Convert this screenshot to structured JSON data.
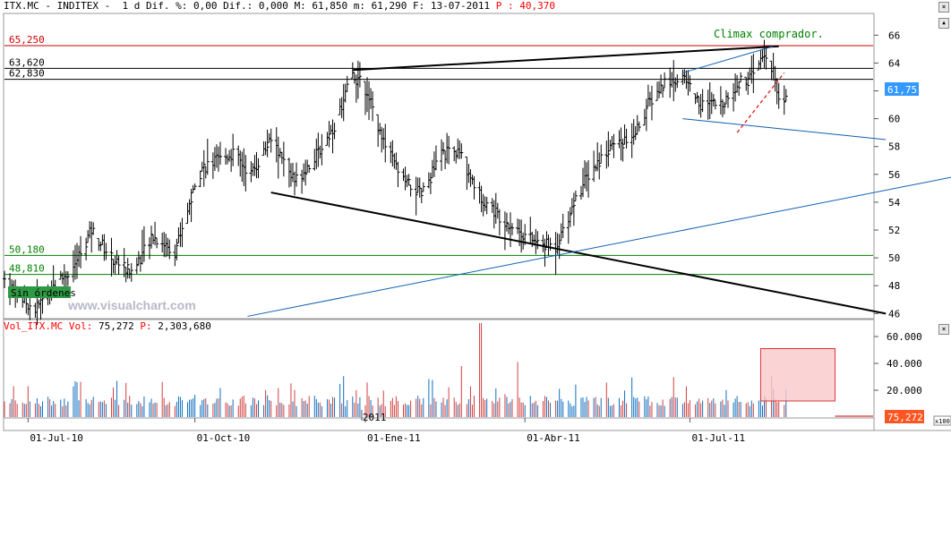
{
  "header": {
    "symbol": "ITX.MC - INDITEX -",
    "timeframe": "1 d",
    "dif_pct": "Dif. %: 0,00",
    "dif": "Dif.: 0,000",
    "max": "M: 61,850",
    "min": "m: 61,290",
    "date": "F: 13-07-2011",
    "p_label": "P :",
    "p_value": "40,370"
  },
  "watermark": "www.visualchart.com",
  "sin_ordenes": "Sin órdenes",
  "annotation": "Climax comprador.",
  "last_price": "61,75",
  "last_volume": "75,272",
  "vol_header": {
    "label": "Vol_ITX.MC Vol:",
    "vol": "75,272",
    "p_label": "P:",
    "p_value": "2,303,680"
  },
  "vol_multiplier": "x100",
  "colors": {
    "resistance": "#cc0000",
    "support": "#008000",
    "trend": "#1060b0",
    "bars": "#000000",
    "vol_up": "#1070c0",
    "vol_down": "#d04040",
    "price_tag": "#3399ff",
    "vol_tag": "#ff5522"
  },
  "chart_data": {
    "type": "bar",
    "price_axis": {
      "ticks": [
        46,
        48,
        50,
        52,
        54,
        56,
        58,
        60,
        62,
        64,
        66
      ],
      "range": [
        45.7,
        67.5
      ]
    },
    "volume_axis": {
      "ticks": [
        "20.000",
        "40.000",
        "60.000"
      ],
      "range": [
        0,
        72000
      ]
    },
    "x_labels": [
      {
        "label": "01-Jul-10",
        "date": "2010-07-01"
      },
      {
        "label": "01-Oct-10",
        "date": "2010-10-01"
      },
      {
        "label": "2011",
        "date": "2011-01-01"
      },
      {
        "label": "01-Ene-11",
        "date": "2011-01-03"
      },
      {
        "label": "01-Abr-11",
        "date": "2011-04-01"
      },
      {
        "label": "01-Jul-11",
        "date": "2011-07-01"
      }
    ],
    "levels": [
      {
        "label": "65,250",
        "value": 65.25,
        "kind": "resistance"
      },
      {
        "label": "63,620",
        "value": 63.62,
        "kind": "line"
      },
      {
        "label": "62,830",
        "value": 62.83,
        "kind": "line"
      },
      {
        "label": "50,180",
        "value": 50.18,
        "kind": "support"
      },
      {
        "label": "48,810",
        "value": 48.81,
        "kind": "support"
      }
    ],
    "price_path": [
      [
        "2010-06-18",
        48.5
      ],
      [
        "2010-06-28",
        47.0
      ],
      [
        "2010-07-05",
        46.3
      ],
      [
        "2010-07-15",
        48.0
      ],
      [
        "2010-07-26",
        49.3
      ],
      [
        "2010-08-05",
        52.0
      ],
      [
        "2010-08-16",
        50.0
      ],
      [
        "2010-08-27",
        49.0
      ],
      [
        "2010-09-08",
        51.5
      ],
      [
        "2010-09-20",
        50.5
      ],
      [
        "2010-09-27",
        53.5
      ],
      [
        "2010-10-05",
        56.5
      ],
      [
        "2010-10-14",
        57.0
      ],
      [
        "2010-10-22",
        57.5
      ],
      [
        "2010-11-01",
        56.0
      ],
      [
        "2010-11-12",
        58.5
      ],
      [
        "2010-11-25",
        55.5
      ],
      [
        "2010-12-08",
        57.5
      ],
      [
        "2010-12-17",
        59.5
      ],
      [
        "2010-12-27",
        63.2
      ],
      [
        "2011-01-04",
        62.0
      ],
      [
        "2011-01-14",
        58.0
      ],
      [
        "2011-01-24",
        55.5
      ],
      [
        "2011-02-03",
        54.5
      ],
      [
        "2011-02-14",
        57.5
      ],
      [
        "2011-02-24",
        57.5
      ],
      [
        "2011-03-07",
        54.5
      ],
      [
        "2011-03-18",
        53.0
      ],
      [
        "2011-03-28",
        52.0
      ],
      [
        "2011-04-08",
        51.0
      ],
      [
        "2011-04-18",
        50.8
      ],
      [
        "2011-04-28",
        54.0
      ],
      [
        "2011-05-06",
        56.0
      ],
      [
        "2011-05-18",
        58.0
      ],
      [
        "2011-05-30",
        58.5
      ],
      [
        "2011-06-08",
        61.0
      ],
      [
        "2011-06-17",
        62.5
      ],
      [
        "2011-06-28",
        63.0
      ],
      [
        "2011-07-07",
        61.0
      ],
      [
        "2011-07-18",
        61.0
      ],
      [
        "2011-07-27",
        62.5
      ],
      [
        "2011-08-05",
        63.0
      ],
      [
        "2011-08-11",
        64.7
      ],
      [
        "2011-08-16",
        63.5
      ],
      [
        "2011-08-19",
        61.0
      ],
      [
        "2011-08-23",
        61.75
      ]
    ],
    "trendlines": [
      {
        "kind": "black",
        "from": [
          "2010-12-27",
          63.5
        ],
        "to": [
          "2011-08-19",
          65.2
        ]
      },
      {
        "kind": "black",
        "from": [
          "2010-11-12",
          54.7
        ],
        "to": [
          "2011-10-17",
          46.0
        ]
      },
      {
        "kind": "trend",
        "from": [
          "2010-10-30",
          45.8
        ],
        "to": [
          "2011-12-08",
          56.2
        ]
      },
      {
        "kind": "trend",
        "from": [
          "2011-06-27",
          63.3
        ],
        "to": [
          "2011-08-16",
          65.2
        ]
      },
      {
        "kind": "trend",
        "from": [
          "2011-06-27",
          60.0
        ],
        "to": [
          "2011-10-17",
          58.5
        ]
      },
      {
        "kind": "dashed",
        "from": [
          "2011-07-27",
          59.0
        ],
        "to": [
          "2011-08-22",
          63.3
        ]
      }
    ],
    "volume_highlight": {
      "from": "2011-08-09",
      "to": "2011-09-19",
      "low": 12000,
      "high": 51000
    }
  }
}
